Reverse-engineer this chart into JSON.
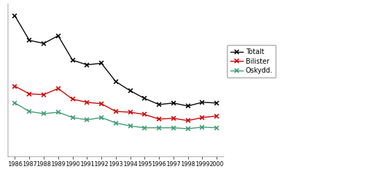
{
  "years": [
    1986,
    1987,
    1988,
    1989,
    1990,
    1991,
    1992,
    1993,
    1994,
    1995,
    1996,
    1997,
    1998,
    1999,
    2000
  ],
  "totalt": [
    9.2,
    7.6,
    7.4,
    7.9,
    6.3,
    6.0,
    6.1,
    4.9,
    4.3,
    3.8,
    3.4,
    3.5,
    3.3,
    3.55,
    3.5
  ],
  "bilister": [
    4.6,
    4.1,
    4.05,
    4.45,
    3.75,
    3.55,
    3.45,
    2.95,
    2.9,
    2.75,
    2.45,
    2.5,
    2.35,
    2.55,
    2.65
  ],
  "oskydd": [
    3.5,
    2.95,
    2.8,
    2.9,
    2.55,
    2.4,
    2.55,
    2.2,
    2.0,
    1.88,
    1.88,
    1.88,
    1.82,
    1.92,
    1.88
  ],
  "totalt_color": "#000000",
  "bilister_color": "#cc0000",
  "oskydd_color": "#3a9a6e",
  "legend_labels": [
    "Totalt",
    "Bilister",
    "Oskydd."
  ],
  "ylim": [
    0,
    10
  ],
  "xlim": [
    1985.5,
    2000.5
  ],
  "grid_color": "#cccccc",
  "plot_bg": "#ffffff",
  "fig_bg": "#ffffff"
}
